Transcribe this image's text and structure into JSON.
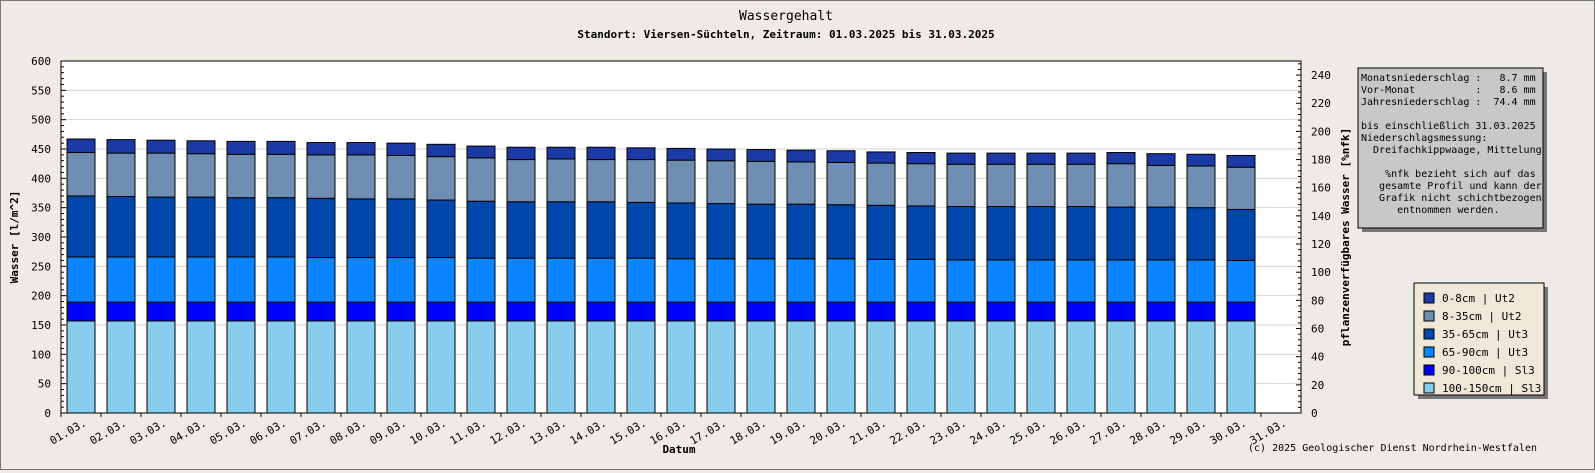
{
  "chart_data": {
    "type": "bar",
    "stacked": true,
    "title": "Wassergehalt",
    "subtitle": "Standort: Viersen-Süchteln, Zeitraum: 01.03.2025 bis 31.03.2025",
    "xlabel": "Datum",
    "ylabel": "Wasser [l/m^2]",
    "y2label": "pflanzenverfügbares Wasser [%nfk]",
    "ylim": [
      0,
      600
    ],
    "y2lim": [
      0,
      250
    ],
    "yticks": [
      "0",
      "50",
      "100",
      "150",
      "200",
      "250",
      "300",
      "350",
      "400",
      "450",
      "500",
      "550",
      "600"
    ],
    "y2ticks": [
      "0",
      "20",
      "40",
      "60",
      "80",
      "100",
      "120",
      "140",
      "160",
      "180",
      "200",
      "220",
      "240"
    ],
    "grid": true,
    "legend_position": "right",
    "categories": [
      "01.03.",
      "02.03.",
      "03.03.",
      "04.03.",
      "05.03.",
      "06.03.",
      "07.03.",
      "08.03.",
      "09.03.",
      "10.03.",
      "11.03.",
      "12.03.",
      "13.03.",
      "14.03.",
      "15.03.",
      "16.03.",
      "17.03.",
      "18.03.",
      "19.03.",
      "20.03.",
      "21.03.",
      "22.03.",
      "23.03.",
      "24.03.",
      "25.03.",
      "26.03.",
      "27.03.",
      "28.03.",
      "29.03.",
      "30.03.",
      "31.03."
    ],
    "series": [
      {
        "name": "100-150cm | Sl3",
        "color": "#87ceee",
        "values": [
          157,
          157,
          157,
          157,
          157,
          157,
          157,
          157,
          157,
          157,
          157,
          157,
          157,
          157,
          157,
          157,
          157,
          157,
          157,
          157,
          157,
          157,
          157,
          157,
          157,
          157,
          157,
          157,
          157,
          157,
          null
        ]
      },
      {
        "name": "90-100cm | Sl3",
        "color": "#0000ff",
        "values": [
          32,
          32,
          32,
          32,
          32,
          32,
          32,
          32,
          32,
          32,
          32,
          32,
          32,
          32,
          32,
          32,
          32,
          32,
          32,
          32,
          32,
          32,
          32,
          32,
          32,
          32,
          32,
          32,
          32,
          32,
          null
        ]
      },
      {
        "name": "65-90cm | Ut3",
        "color": "#0a84ff",
        "values": [
          77,
          77,
          77,
          77,
          77,
          77,
          76,
          76,
          76,
          76,
          75,
          75,
          75,
          75,
          75,
          74,
          74,
          74,
          74,
          74,
          73,
          73,
          72,
          72,
          72,
          72,
          72,
          72,
          72,
          71,
          null
        ]
      },
      {
        "name": "35-65cm | Ut3",
        "color": "#0047ab",
        "values": [
          104,
          103,
          102,
          102,
          101,
          101,
          101,
          100,
          100,
          98,
          97,
          96,
          96,
          96,
          95,
          95,
          94,
          93,
          93,
          92,
          92,
          91,
          91,
          91,
          91,
          91,
          90,
          90,
          89,
          87,
          null
        ]
      },
      {
        "name": "8-35cm | Ut2",
        "color": "#6e8eb2",
        "values": [
          74,
          74,
          75,
          74,
          74,
          74,
          74,
          75,
          74,
          74,
          74,
          72,
          73,
          72,
          73,
          73,
          73,
          73,
          72,
          72,
          72,
          72,
          72,
          72,
          72,
          72,
          74,
          71,
          71,
          72,
          null
        ]
      },
      {
        "name": "0-8cm | Ut2",
        "color": "#1c3aa6",
        "values": [
          23,
          23,
          22,
          22,
          22,
          22,
          21,
          21,
          21,
          21,
          20,
          21,
          20,
          21,
          20,
          20,
          20,
          20,
          20,
          20,
          19,
          19,
          19,
          19,
          19,
          19,
          19,
          20,
          20,
          20,
          null
        ]
      }
    ]
  },
  "info_box": {
    "lines": [
      "Monatsniederschlag :   8.7 mm",
      "Vor-Monat          :   8.6 mm",
      "Jahresniederschlag :  74.4 mm",
      "",
      "bis einschließlich 31.03.2025",
      "Niederschlagsmessung:",
      "  Dreifachkippwaage, Mittelung",
      "",
      "    %nfk bezieht sich auf das",
      "   gesamte Profil und kann der",
      "   Grafik nicht schichtbezogen",
      "      entnommen werden."
    ]
  },
  "credit": "(c) 2025 Geologischer Dienst Nordrhein-Westfalen",
  "colors": {
    "background": "#eeeae6",
    "plot_background": "#ffffff",
    "info_background": "#c8c8c8",
    "legend_background": "#efe8d8"
  }
}
